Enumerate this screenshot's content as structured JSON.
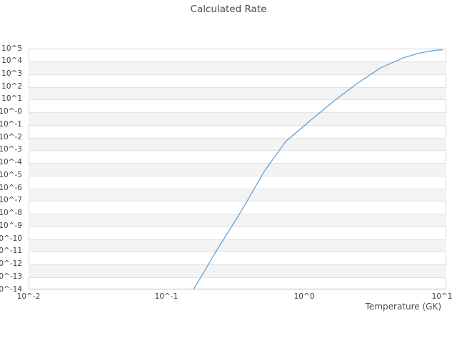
{
  "title": "Calculated Rate",
  "colors": {
    "background": "#ffffff",
    "band_gray": "#f3f3f3",
    "gridline": "#e2e2e2",
    "plot_border": "#d6d6d6",
    "axis_line": "#b9b9b9",
    "text": "#4a4a4a",
    "line": "#5b9bd5"
  },
  "chart_data": {
    "type": "line",
    "title": "Calculated Rate",
    "xlabel": "Temperature (GK)",
    "ylabel": "",
    "x_scale": "log",
    "y_scale": "log",
    "xlim_log10": [
      -2,
      1.031
    ],
    "ylim_log10": [
      -14,
      5
    ],
    "x_tick_labels": [
      "10^-2",
      "10^-1",
      "10^0",
      "10^1"
    ],
    "x_tick_log10": [
      -2,
      -1,
      0,
      1
    ],
    "y_tick_labels": [
      "10^5",
      "10^4",
      "10^3",
      "10^2",
      "10^1",
      "10^-0",
      "10^-1",
      "10^-2",
      "10^-3",
      "10^-4",
      "10^-5",
      "10^-6",
      "10^-7",
      "10^-8",
      "10^-9",
      "10^-10",
      "10^-11",
      "10^-12",
      "10^-13",
      "10^-14"
    ],
    "y_tick_log10": [
      5,
      4,
      3,
      2,
      1,
      0,
      -1,
      -2,
      -3,
      -4,
      -5,
      -6,
      -7,
      -8,
      -9,
      -10,
      -11,
      -12,
      -13,
      -14
    ],
    "grid": "horizontal-lines-with-alternating-bands",
    "legend": "none",
    "line_color": "#5b9bd5",
    "series": [
      {
        "name": "calculated-rate",
        "comment": "points as [log10(T_GK), log10(rate)]",
        "points_log10": [
          [
            -0.803,
            -14.0
          ],
          [
            -0.731,
            -12.7
          ],
          [
            -0.653,
            -11.24
          ],
          [
            -0.549,
            -9.43
          ],
          [
            -0.446,
            -7.63
          ],
          [
            -0.29,
            -4.7
          ],
          [
            -0.135,
            -2.33
          ],
          [
            0.036,
            -0.75
          ],
          [
            0.212,
            0.83
          ],
          [
            0.383,
            2.24
          ],
          [
            0.554,
            3.48
          ],
          [
            0.72,
            4.27
          ],
          [
            0.823,
            4.61
          ],
          [
            0.901,
            4.78
          ],
          [
            0.964,
            4.89
          ],
          [
            1.005,
            4.9
          ]
        ]
      }
    ]
  }
}
